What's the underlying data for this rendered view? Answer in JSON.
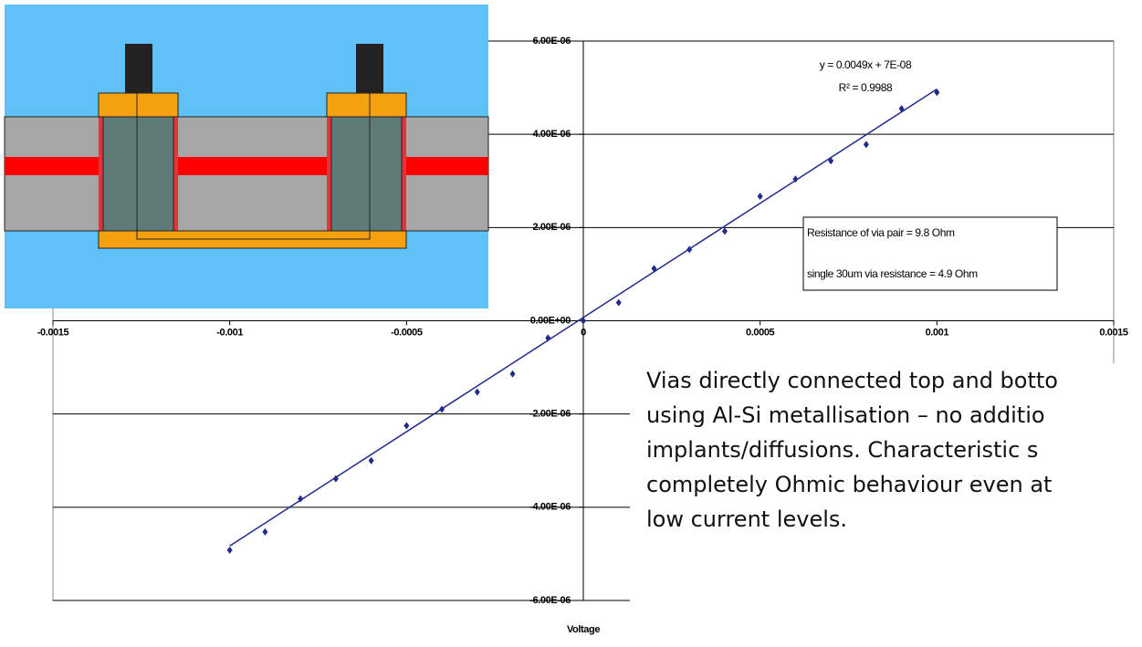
{
  "chart_data": {
    "type": "scatter",
    "x_label": "Voltage",
    "x": [
      -0.001,
      -0.0009,
      -0.0008,
      -0.0007,
      -0.0006,
      -0.0005,
      -0.0004,
      -0.0003,
      -0.0002,
      -0.0001,
      0,
      0.0001,
      0.0002,
      0.0003,
      0.0004,
      0.0005,
      0.0006,
      0.0007,
      0.0008,
      0.0009,
      0.001
    ],
    "series": [
      {
        "color": "#1f2a8c",
        "values": [
          -4.92e-06,
          -4.53e-06,
          -3.82e-06,
          -3.39e-06,
          -3e-06,
          -2.25e-06,
          -1.9e-06,
          -1.53e-06,
          -1.14e-06,
          -3.7e-07,
          0,
          3.9e-07,
          1.12e-06,
          1.53e-06,
          1.92e-06,
          2.67e-06,
          3.04e-06,
          3.43e-06,
          3.78e-06,
          4.55e-06,
          4.9e-06
        ]
      }
    ],
    "trendline": {
      "color": "#1f2a8c",
      "x": [
        -0.001,
        0.001
      ],
      "values": [
        -4.83e-06,
        4.97e-06
      ]
    },
    "xlim": [
      -0.0015,
      0.0015
    ],
    "ylim": [
      -6e-06,
      6e-06
    ],
    "xticks": [
      -0.0015,
      -0.001,
      -0.0005,
      0,
      0.0005,
      0.001,
      0.0015
    ],
    "yticks": [
      {
        "value": -6e-06,
        "label": "-6.00E-06"
      },
      {
        "value": -4e-06,
        "label": "-4.00E-06"
      },
      {
        "value": -2e-06,
        "label": "-2.00E-06"
      },
      {
        "value": 0,
        "label": "0.00E+00"
      },
      {
        "value": 2e-06,
        "label": "2.00E-06"
      },
      {
        "value": 4e-06,
        "label": "4.00E-06"
      },
      {
        "value": 6e-06,
        "label": "6.00E-06"
      }
    ],
    "grid": true,
    "annotations": {
      "equation": "y = 0.0049x + 7E-08",
      "r_squared": "R² = 0.9988",
      "box": [
        "Resistance of via pair = 9.8 Ohm",
        "single 30um via resistance = 4.9 Ohm"
      ]
    }
  },
  "description": {
    "lines": [
      "Vias directly connected top and botto",
      "using Al-Si metallisation – no additio",
      "implants/diffusions.  Characteristic s",
      "completely Ohmic behaviour even at",
      "low current levels."
    ]
  }
}
